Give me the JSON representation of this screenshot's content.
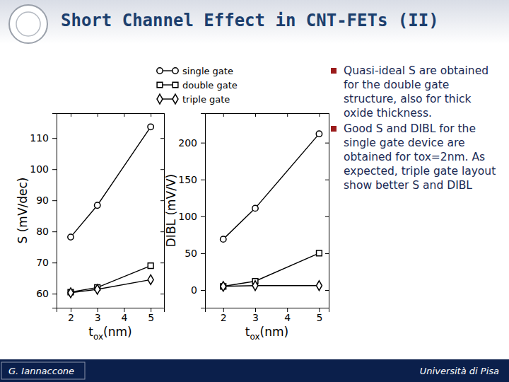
{
  "slide": {
    "title": "Short Channel Effect in CNT-FETs (II)",
    "bullets": [
      "Quasi-ideal S are obtained for the double gate structure, also for thick oxide thickness.",
      "Good S and DIBL for the single gate device are obtained for tox=2nm. As expected, triple gate layout show better S and DIBL"
    ],
    "footer_left": "G. Iannaccone",
    "footer_right": "Università di Pisa"
  },
  "chart_data": [
    {
      "type": "line",
      "xlabel": "tox(nm)",
      "ylabel": "S (mV/dec)",
      "x": [
        2,
        3,
        5
      ],
      "xlim": [
        1.47,
        5.5
      ],
      "xticks": [
        2,
        3,
        4,
        5
      ],
      "ylim": [
        55.5,
        118
      ],
      "yticks": [
        60,
        70,
        80,
        90,
        100,
        110
      ],
      "series": [
        {
          "name": "single gate",
          "color": "#000000",
          "marker": "circle",
          "line_style": "solid",
          "values": [
            78.2,
            88.4,
            113.6
          ]
        },
        {
          "name": "double gate",
          "color": "#000000",
          "marker": "square",
          "line_style": "solid",
          "values": [
            60.5,
            62,
            69
          ]
        },
        {
          "name": "triple gate",
          "color": "#000000",
          "marker": "diamond",
          "line_style": "solid",
          "values": [
            60.3,
            61.4,
            64.5
          ]
        }
      ]
    },
    {
      "type": "line",
      "xlabel": "tox(nm)",
      "ylabel": "DIBL (mV/V)",
      "x": [
        2,
        3,
        5
      ],
      "xlim": [
        1.43,
        5.3
      ],
      "xticks": [
        2,
        3,
        4,
        5
      ],
      "ylim": [
        -24,
        240
      ],
      "yticks": [
        0,
        50,
        100,
        150,
        200
      ],
      "series": [
        {
          "color": "#000000",
          "marker": "circle",
          "line_style": "solid",
          "values": [
            69,
            111,
            212
          ]
        },
        {
          "color": "#000000",
          "marker": "square",
          "line_style": "solid",
          "values": [
            5,
            12,
            50
          ]
        },
        {
          "color": "#000000",
          "marker": "diamond",
          "line_style": "solid",
          "values": [
            5,
            6,
            6
          ]
        }
      ]
    }
  ]
}
